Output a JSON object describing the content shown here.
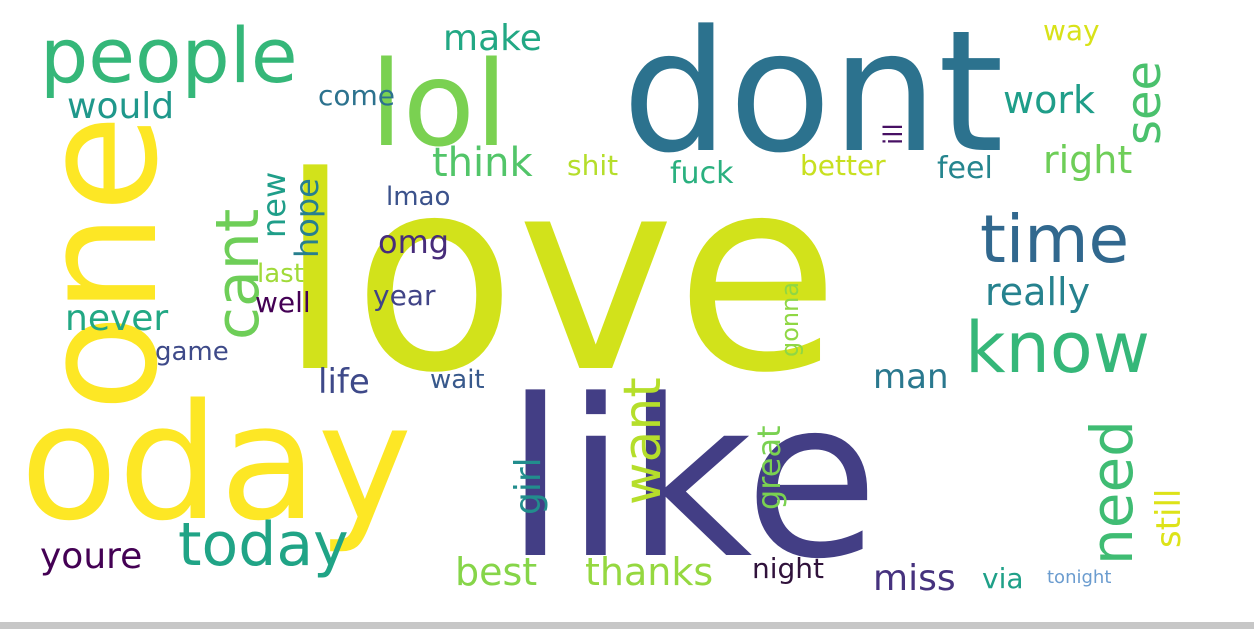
{
  "words": [
    {
      "text": "love",
      "color": "#d2e21b"
    },
    {
      "text": "like",
      "color": "#433e85"
    },
    {
      "text": "one",
      "color": "#fde725"
    },
    {
      "text": "oday",
      "color": "#fde725"
    },
    {
      "text": "dont",
      "color": "#2c728e"
    },
    {
      "text": "lol",
      "color": "#7ad151"
    },
    {
      "text": "people",
      "color": "#35b779"
    },
    {
      "text": "today",
      "color": "#20a486"
    },
    {
      "text": "know",
      "color": "#35b779"
    },
    {
      "text": "time",
      "color": "#31688e"
    },
    {
      "text": "cant",
      "color": "#6ece58"
    },
    {
      "text": "want",
      "color": "#b5de2b"
    },
    {
      "text": "need",
      "color": "#3fbc73"
    },
    {
      "text": "see",
      "color": "#4ac16d"
    },
    {
      "text": "work",
      "color": "#1f9e89"
    },
    {
      "text": "right",
      "color": "#6ece58"
    },
    {
      "text": "think",
      "color": "#52c569"
    },
    {
      "text": "make",
      "color": "#22a884"
    },
    {
      "text": "would",
      "color": "#1f988b"
    },
    {
      "text": "really",
      "color": "#26828e"
    },
    {
      "text": "never",
      "color": "#22a884"
    },
    {
      "text": "youre",
      "color": "#440154"
    },
    {
      "text": "best",
      "color": "#86d549"
    },
    {
      "text": "thanks",
      "color": "#95d840"
    },
    {
      "text": "miss",
      "color": "#46327e"
    },
    {
      "text": "man",
      "color": "#2a788e"
    },
    {
      "text": "life",
      "color": "#3e4989"
    },
    {
      "text": "omg",
      "color": "#472c7a"
    },
    {
      "text": "hope",
      "color": "#277f8e"
    },
    {
      "text": "new",
      "color": "#1f9e89"
    },
    {
      "text": "girl",
      "color": "#228d8d"
    },
    {
      "text": "great",
      "color": "#7ad151"
    },
    {
      "text": "still",
      "color": "#dde318"
    },
    {
      "text": "fuck",
      "color": "#2ab07f"
    },
    {
      "text": "shit",
      "color": "#b5de2b"
    },
    {
      "text": "better",
      "color": "#c8e020"
    },
    {
      "text": "feel",
      "color": "#25858e"
    },
    {
      "text": "way",
      "color": "#d8e219"
    },
    {
      "text": "come",
      "color": "#2c728e"
    },
    {
      "text": "ill",
      "color": "#471063"
    },
    {
      "text": "lmao",
      "color": "#3b528b"
    },
    {
      "text": "last",
      "color": "#a0da39"
    },
    {
      "text": "well",
      "color": "#440154"
    },
    {
      "text": "year",
      "color": "#414487"
    },
    {
      "text": "game",
      "color": "#3e4a89"
    },
    {
      "text": "gonna",
      "color": "#8fd744"
    },
    {
      "text": "wait",
      "color": "#38598c"
    },
    {
      "text": "night",
      "color": "#30123b"
    },
    {
      "text": "via",
      "color": "#1fa088"
    },
    {
      "text": "tonight",
      "color": "#6b9ccf"
    }
  ]
}
